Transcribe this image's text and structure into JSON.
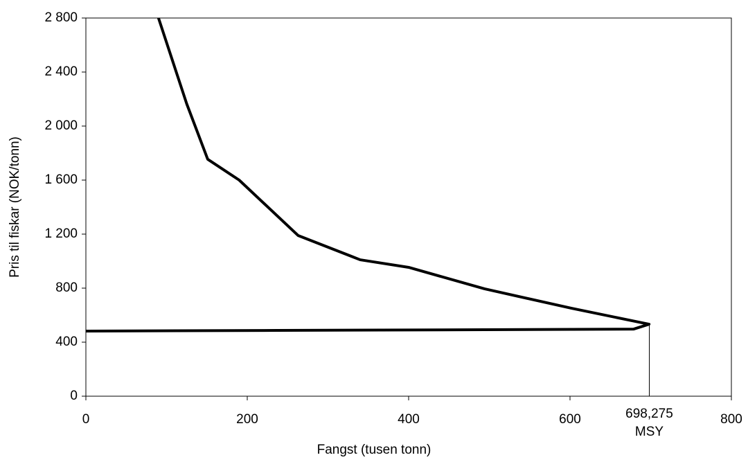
{
  "chart_data": {
    "type": "line",
    "x_label": "Fangst (tusen tonn)",
    "y_label": "Pris til fiskar (NOK/tonn)",
    "series": [
      {
        "color": "#000000",
        "x": [
          90,
          125,
          151,
          190,
          263,
          340,
          400,
          494,
          602,
          698,
          679,
          494,
          237,
          0
        ],
        "values": [
          2800,
          2164,
          1754,
          1600,
          1190,
          1010,
          954,
          795,
          651,
          533,
          497,
          492,
          487,
          482
        ]
      }
    ],
    "xlim": [
      0,
      800
    ],
    "xticks": [
      0,
      200,
      400,
      600,
      800
    ],
    "ylim": [
      0,
      2800
    ],
    "yticks": [
      0,
      400,
      800,
      {
        "value": 1200,
        "label": "1 200"
      },
      {
        "value": 1600,
        "label": "1 600"
      },
      {
        "value": 2000,
        "label": "2 000"
      },
      {
        "value": 2400,
        "label": "2 400"
      },
      {
        "value": 2800,
        "label": "2 800"
      }
    ],
    "annotation": {
      "x": 698.275,
      "label": "698,275",
      "text": "MSY"
    }
  }
}
